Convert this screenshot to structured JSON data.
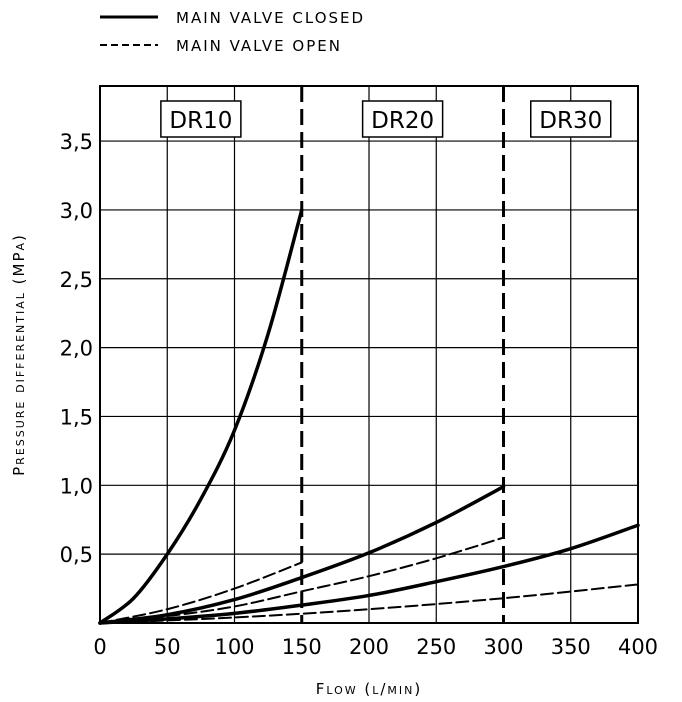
{
  "chart_data": {
    "type": "line",
    "title": "",
    "xlabel": "Flow (l/min)",
    "ylabel": "Pressure differential (MPa)",
    "xlim": [
      0,
      400
    ],
    "ylim": [
      0,
      3.9
    ],
    "x_ticks": [
      "0",
      "50",
      "100",
      "150",
      "200",
      "250",
      "300",
      "350",
      "400"
    ],
    "y_ticks": [
      "0,5",
      "1,0",
      "1,5",
      "2,0",
      "2,5",
      "3,0",
      "3,5"
    ],
    "grid": true,
    "legend": {
      "placement": "top-left",
      "entries": [
        {
          "label": "MAIN VALVE CLOSED",
          "style": "solid"
        },
        {
          "label": "MAIN VALVE OPEN",
          "style": "dashed"
        }
      ]
    },
    "regions": [
      {
        "label": "DR10",
        "x_range": [
          0,
          150
        ]
      },
      {
        "label": "DR20",
        "x_range": [
          150,
          300
        ]
      },
      {
        "label": "DR30",
        "x_range": [
          300,
          400
        ]
      }
    ],
    "boundaries_x": [
      150,
      300
    ],
    "series": [
      {
        "region": "DR10",
        "style": "solid",
        "x": [
          0,
          25,
          50,
          75,
          100,
          125,
          150
        ],
        "y": [
          0,
          0.18,
          0.5,
          0.9,
          1.4,
          2.1,
          3.0
        ]
      },
      {
        "region": "DR10",
        "style": "dashed",
        "x": [
          0,
          50,
          100,
          150
        ],
        "y": [
          0,
          0.1,
          0.25,
          0.44
        ]
      },
      {
        "region": "DR20",
        "style": "solid",
        "x": [
          0,
          50,
          100,
          150,
          200,
          250,
          300
        ],
        "y": [
          0,
          0.06,
          0.17,
          0.33,
          0.51,
          0.73,
          0.99
        ]
      },
      {
        "region": "DR20",
        "style": "dashed",
        "x": [
          0,
          50,
          100,
          150,
          200,
          250,
          300
        ],
        "y": [
          0,
          0.05,
          0.12,
          0.23,
          0.34,
          0.47,
          0.62
        ]
      },
      {
        "region": "DR30",
        "style": "solid",
        "x": [
          0,
          50,
          100,
          150,
          200,
          250,
          300,
          350,
          400
        ],
        "y": [
          0,
          0.03,
          0.07,
          0.13,
          0.2,
          0.3,
          0.41,
          0.54,
          0.71
        ]
      },
      {
        "region": "DR30",
        "style": "dashed",
        "x": [
          0,
          100,
          200,
          300,
          400
        ],
        "y": [
          0,
          0.04,
          0.1,
          0.18,
          0.28
        ]
      }
    ]
  }
}
